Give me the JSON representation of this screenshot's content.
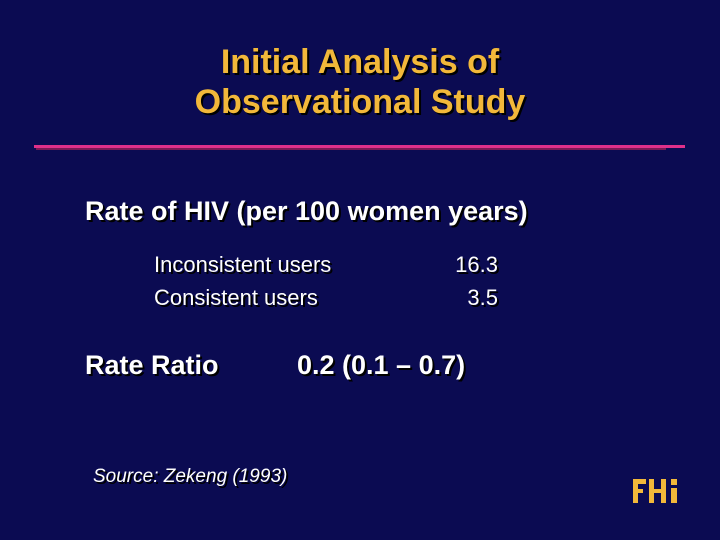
{
  "slide": {
    "title_line1": "Initial Analysis of",
    "title_line2": "Observational Study",
    "heading": "Rate of HIV (per 100 women years)",
    "rows": [
      {
        "label": "Inconsistent users",
        "value": "16.3"
      },
      {
        "label": "Consistent users",
        "value": "3.5"
      }
    ],
    "ratio_label": "Rate Ratio",
    "ratio_value": "0.2 (0.1 – 0.7)",
    "source": "Source:  Zekeng (1993)",
    "logo_text": "FHI"
  },
  "colors": {
    "background": "#0b0b52",
    "title": "#f2b83a",
    "rule": "#e0308a",
    "text": "#ffffff"
  }
}
